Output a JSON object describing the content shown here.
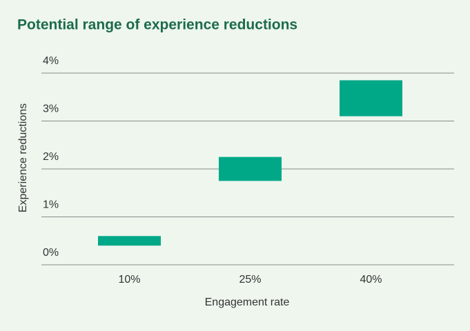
{
  "chart_data": {
    "type": "range-bar",
    "title": "Potential range of experience reductions",
    "x_label": "Engagement rate",
    "y_label": "Experience reductions",
    "categories": [
      "10%",
      "25%",
      "40%"
    ],
    "values": [
      [
        0.4,
        0.6
      ],
      [
        1.75,
        2.25
      ],
      [
        3.1,
        3.85
      ]
    ],
    "color": "#00a888",
    "ylim": [
      0,
      4
    ],
    "yticks": [
      {
        "value": 0,
        "label": "0%"
      },
      {
        "value": 1,
        "label": "1%"
      },
      {
        "value": 2,
        "label": "2%"
      },
      {
        "value": 3,
        "label": "3%"
      },
      {
        "value": 4,
        "label": "4%"
      }
    ],
    "grid": true
  }
}
